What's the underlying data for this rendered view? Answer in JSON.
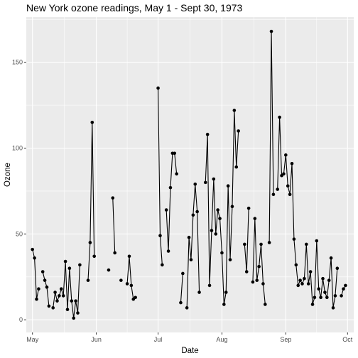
{
  "chart_data": {
    "type": "line",
    "title": "New York ozone readings, May 1 - Sept 30, 1973",
    "xlabel": "Date",
    "ylabel": "Ozone",
    "x_axis": {
      "kind": "date",
      "range": [
        "1973-04-28",
        "1973-10-04"
      ],
      "ticks": [
        {
          "date": "1973-05-01",
          "label": "May"
        },
        {
          "date": "1973-06-01",
          "label": "Jun"
        },
        {
          "date": "1973-07-01",
          "label": "Jul"
        },
        {
          "date": "1973-08-01",
          "label": "Aug"
        },
        {
          "date": "1973-09-01",
          "label": "Sep"
        },
        {
          "date": "1973-10-01",
          "label": "Oct"
        }
      ]
    },
    "y_axis": {
      "range": [
        -7.35,
        176.35
      ],
      "ticks": [
        0,
        50,
        100,
        150
      ]
    },
    "grid": true,
    "panel_background": "#ebebeb",
    "grid_color": "#ffffff",
    "line_color": "#000000",
    "point_color": "#000000",
    "series": [
      {
        "x": [
          "1973-05-01",
          "1973-05-02",
          "1973-05-03",
          "1973-05-04",
          "1973-05-05",
          "1973-05-06",
          "1973-05-07",
          "1973-05-08",
          "1973-05-09",
          "1973-05-10",
          "1973-05-11",
          "1973-05-12",
          "1973-05-13",
          "1973-05-14",
          "1973-05-15",
          "1973-05-16",
          "1973-05-17",
          "1973-05-18",
          "1973-05-19",
          "1973-05-20",
          "1973-05-21",
          "1973-05-22",
          "1973-05-23",
          "1973-05-24",
          "1973-05-25",
          "1973-05-26",
          "1973-05-27",
          "1973-05-28",
          "1973-05-29",
          "1973-05-30",
          "1973-05-31",
          "1973-06-01",
          "1973-06-02",
          "1973-06-03",
          "1973-06-04",
          "1973-06-05",
          "1973-06-06",
          "1973-06-07",
          "1973-06-08",
          "1973-06-09",
          "1973-06-10",
          "1973-06-11",
          "1973-06-12",
          "1973-06-13",
          "1973-06-14",
          "1973-06-15",
          "1973-06-16",
          "1973-06-17",
          "1973-06-18",
          "1973-06-19",
          "1973-06-20",
          "1973-06-21",
          "1973-06-22",
          "1973-06-23",
          "1973-06-24",
          "1973-06-25",
          "1973-06-26",
          "1973-06-27",
          "1973-06-28",
          "1973-06-29",
          "1973-06-30",
          "1973-07-01",
          "1973-07-02",
          "1973-07-03",
          "1973-07-04",
          "1973-07-05",
          "1973-07-06",
          "1973-07-07",
          "1973-07-08",
          "1973-07-09",
          "1973-07-10",
          "1973-07-11",
          "1973-07-12",
          "1973-07-13",
          "1973-07-14",
          "1973-07-15",
          "1973-07-16",
          "1973-07-17",
          "1973-07-18",
          "1973-07-19",
          "1973-07-20",
          "1973-07-21",
          "1973-07-22",
          "1973-07-23",
          "1973-07-24",
          "1973-07-25",
          "1973-07-26",
          "1973-07-27",
          "1973-07-28",
          "1973-07-29",
          "1973-07-30",
          "1973-07-31",
          "1973-08-01",
          "1973-08-02",
          "1973-08-03",
          "1973-08-04",
          "1973-08-05",
          "1973-08-06",
          "1973-08-07",
          "1973-08-08",
          "1973-08-09",
          "1973-08-10",
          "1973-08-11",
          "1973-08-12",
          "1973-08-13",
          "1973-08-14",
          "1973-08-15",
          "1973-08-16",
          "1973-08-17",
          "1973-08-18",
          "1973-08-19",
          "1973-08-20",
          "1973-08-21",
          "1973-08-22",
          "1973-08-23",
          "1973-08-24",
          "1973-08-25",
          "1973-08-26",
          "1973-08-27",
          "1973-08-28",
          "1973-08-29",
          "1973-08-30",
          "1973-08-31",
          "1973-09-01",
          "1973-09-02",
          "1973-09-03",
          "1973-09-04",
          "1973-09-05",
          "1973-09-06",
          "1973-09-07",
          "1973-09-08",
          "1973-09-09",
          "1973-09-10",
          "1973-09-11",
          "1973-09-12",
          "1973-09-13",
          "1973-09-14",
          "1973-09-15",
          "1973-09-16",
          "1973-09-17",
          "1973-09-18",
          "1973-09-19",
          "1973-09-20",
          "1973-09-21",
          "1973-09-22",
          "1973-09-23",
          "1973-09-24",
          "1973-09-25",
          "1973-09-26",
          "1973-09-27",
          "1973-09-28",
          "1973-09-29",
          "1973-09-30"
        ],
        "y": [
          41,
          36,
          12,
          18,
          null,
          28,
          23,
          19,
          8,
          null,
          7,
          16,
          11,
          14,
          18,
          14,
          34,
          6,
          30,
          11,
          1,
          11,
          4,
          32,
          null,
          null,
          null,
          23,
          45,
          115,
          37,
          null,
          null,
          null,
          null,
          null,
          null,
          29,
          null,
          71,
          39,
          null,
          null,
          23,
          null,
          null,
          21,
          37,
          20,
          12,
          13,
          null,
          null,
          null,
          null,
          null,
          null,
          null,
          null,
          null,
          null,
          135,
          49,
          32,
          null,
          64,
          40,
          77,
          97,
          97,
          85,
          null,
          10,
          27,
          null,
          7,
          48,
          35,
          61,
          79,
          63,
          16,
          null,
          null,
          80,
          108,
          20,
          52,
          82,
          50,
          64,
          59,
          39,
          9,
          16,
          78,
          35,
          66,
          122,
          89,
          110,
          null,
          null,
          44,
          28,
          65,
          null,
          22,
          59,
          23,
          31,
          44,
          21,
          9,
          null,
          45,
          168,
          73,
          null,
          76,
          118,
          84,
          85,
          96,
          78,
          73,
          91,
          47,
          32,
          20,
          23,
          21,
          24,
          44,
          21,
          28,
          9,
          13,
          46,
          18,
          13,
          24,
          16,
          13,
          23,
          36,
          7,
          14,
          30,
          null,
          14,
          18,
          20
        ]
      }
    ]
  }
}
